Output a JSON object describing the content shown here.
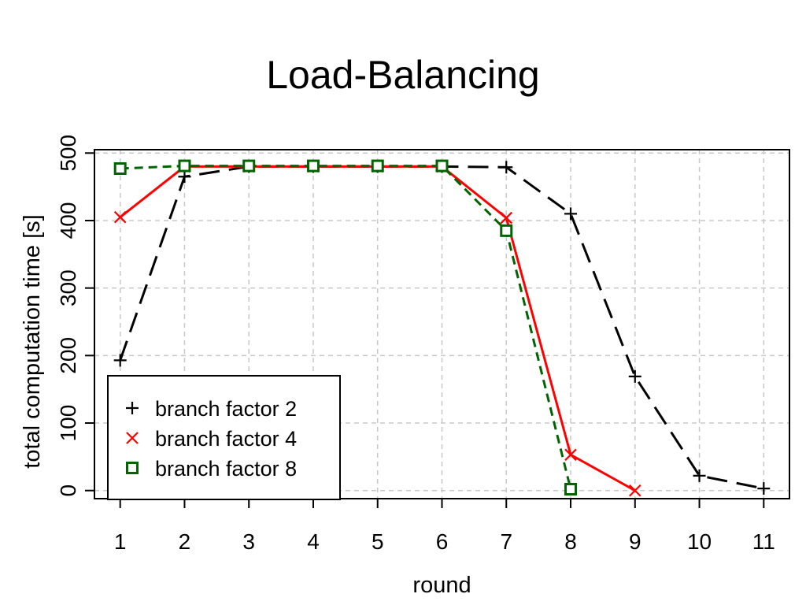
{
  "title": "Load-Balancing",
  "chart_data": {
    "type": "line",
    "title": "Load-Balancing",
    "xlabel": "round",
    "ylabel": "total computation time [s]",
    "x_ticks": [
      "1",
      "2",
      "3",
      "4",
      "5",
      "6",
      "7",
      "8",
      "9",
      "10",
      "11"
    ],
    "y_ticks": [
      "0",
      "100",
      "200",
      "300",
      "400",
      "500"
    ],
    "xlim": [
      0.6,
      11.4
    ],
    "ylim": [
      -12,
      505
    ],
    "grid": true,
    "legend_position": "bottom-left",
    "series": [
      {
        "name": "branch factor 2",
        "color": "#000000",
        "marker": "plus",
        "line": "longdash",
        "x": [
          1,
          2,
          3,
          4,
          5,
          6,
          7,
          8,
          9,
          10,
          11
        ],
        "y": [
          193,
          465,
          480,
          480,
          480,
          480,
          479,
          410,
          169,
          22,
          3
        ]
      },
      {
        "name": "branch factor 4",
        "color": "#ff0000",
        "marker": "cross",
        "line": "solid",
        "x": [
          1,
          2,
          3,
          4,
          5,
          6,
          7,
          8,
          9
        ],
        "y": [
          405,
          480,
          480,
          480,
          480,
          480,
          404,
          53,
          0
        ]
      },
      {
        "name": "branch factor 8",
        "color": "#006400",
        "marker": "square",
        "line": "dashed",
        "x": [
          1,
          2,
          3,
          4,
          5,
          6,
          7,
          8
        ],
        "y": [
          477,
          481,
          481,
          481,
          481,
          481,
          385,
          2
        ]
      }
    ]
  }
}
